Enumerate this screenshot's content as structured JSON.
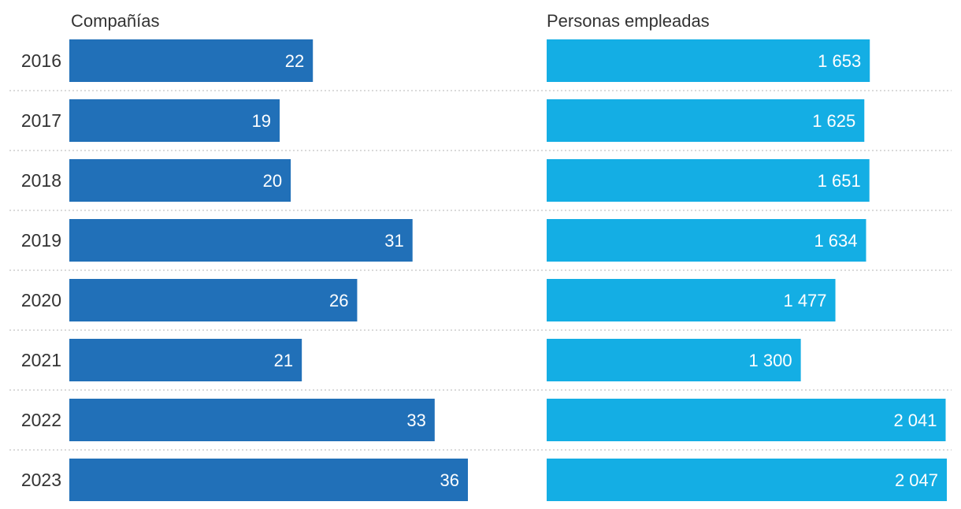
{
  "chart_data": {
    "type": "bar",
    "orientation": "horizontal",
    "categories": [
      "2016",
      "2017",
      "2018",
      "2019",
      "2020",
      "2021",
      "2022",
      "2023"
    ],
    "series": [
      {
        "name": "Compañías",
        "values": [
          22,
          19,
          20,
          31,
          26,
          21,
          33,
          36
        ],
        "labels": [
          "22",
          "19",
          "20",
          "31",
          "26",
          "21",
          "33",
          "36"
        ],
        "color": "#2170b8",
        "xlim": [
          0,
          36
        ]
      },
      {
        "name": "Personas empleadas",
        "values": [
          1653,
          1625,
          1651,
          1634,
          1477,
          1300,
          2041,
          2047
        ],
        "labels": [
          "1 653",
          "1 625",
          "1 651",
          "1 634",
          "1 477",
          "1 300",
          "2 041",
          "2 047"
        ],
        "color": "#14aee4",
        "xlim": [
          0,
          2047
        ]
      }
    ],
    "grid": false,
    "row_dividers": "dotted",
    "legend": "panel titles above each column"
  }
}
